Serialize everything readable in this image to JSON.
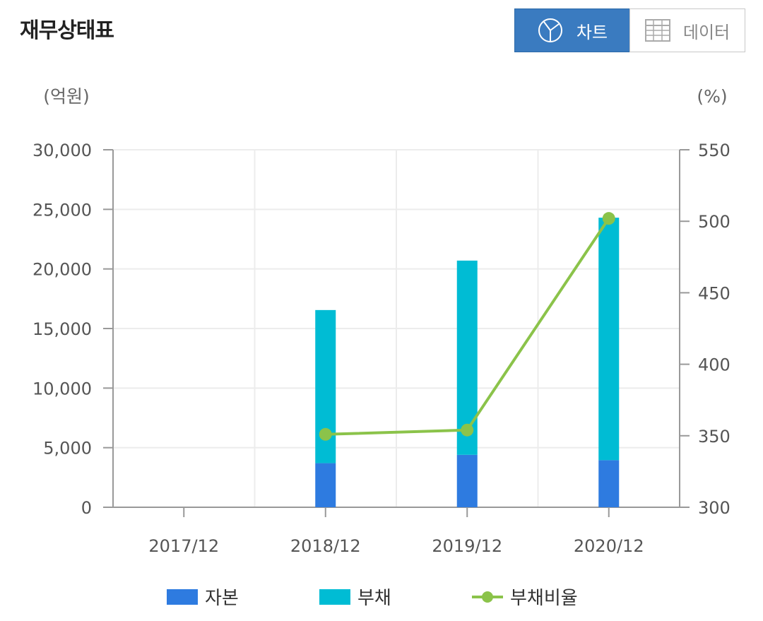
{
  "header": {
    "title": "재무상태표",
    "chart_button_label": "차트",
    "data_button_label": "데이터"
  },
  "chart_data": {
    "type": "bar",
    "stacked": true,
    "categories": [
      "2017/12",
      "2018/12",
      "2019/12",
      "2020/12"
    ],
    "left_axis": {
      "unit": "(억원)",
      "ylim": [
        0,
        30000
      ],
      "ticks": [
        0,
        5000,
        10000,
        15000,
        20000,
        25000,
        30000
      ],
      "tick_labels": [
        "0",
        "5,000",
        "10,000",
        "15,000",
        "20,000",
        "25,000",
        "30,000"
      ]
    },
    "right_axis": {
      "unit": "(%)",
      "ylim": [
        300,
        550
      ],
      "ticks": [
        300,
        350,
        400,
        450,
        500,
        550
      ],
      "tick_labels": [
        "300",
        "350",
        "400",
        "450",
        "500",
        "550"
      ]
    },
    "series": [
      {
        "name": "자본",
        "type": "bar",
        "axis": "left",
        "color": "#2e7be0",
        "values": [
          null,
          3700,
          4400,
          3950
        ]
      },
      {
        "name": "부채",
        "type": "bar",
        "axis": "left",
        "color": "#00bcd4",
        "values": [
          null,
          12850,
          16300,
          20350
        ]
      },
      {
        "name": "부채비율",
        "type": "line",
        "axis": "right",
        "color": "#8bc34a",
        "values": [
          null,
          351,
          354,
          502
        ]
      }
    ],
    "grid": true,
    "legend_position": "bottom"
  }
}
